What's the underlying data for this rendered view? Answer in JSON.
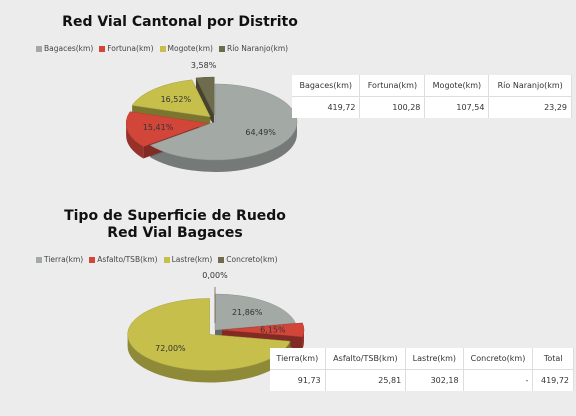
{
  "chart_data": [
    {
      "type": "pie",
      "title": "Red Vial Cantonal por Distrito",
      "categories": [
        "Bagaces(km)",
        "Fortuna(km)",
        "Mogote(km)",
        "Río Naranjo(km)"
      ],
      "values": [
        64.49,
        15.41,
        16.52,
        3.58
      ],
      "value_labels": [
        "64,49%",
        "15,41%",
        "16,52%",
        "3,58%"
      ],
      "colors": [
        "#a3aaa6",
        "#d2463a",
        "#c6bf4c",
        "#6e6c4c"
      ],
      "legend": "top"
    },
    {
      "type": "pie",
      "title": "Tipo de Superficie de Ruedo Red Vial Bagaces",
      "categories": [
        "Tierra(km)",
        "Asfalto/TSB(km)",
        "Lastre(km)",
        "Concreto(km)"
      ],
      "values": [
        21.86,
        6.15,
        72.0,
        0.0
      ],
      "value_labels": [
        "21,86%",
        "6,15%",
        "72,00%",
        "0,00%"
      ],
      "colors": [
        "#a3aaa6",
        "#d2463a",
        "#c6bf4c",
        "#6e6c4c"
      ],
      "legend": "top"
    }
  ],
  "tables": [
    {
      "header": [
        "Bagaces(km)",
        "Fortuna(km)",
        "Mogote(km)",
        "Río Naranjo(km)"
      ],
      "rows": [
        [
          "419,72",
          "100,28",
          "107,54",
          "23,29"
        ]
      ]
    },
    {
      "header": [
        "Tierra(km)",
        "Asfalto/TSB(km)",
        "Lastre(km)",
        "Concreto(km)",
        "Total"
      ],
      "rows": [
        [
          "91,73",
          "25,81",
          "302,18",
          "-",
          "419,72"
        ]
      ]
    }
  ]
}
